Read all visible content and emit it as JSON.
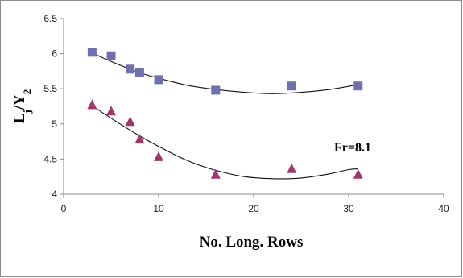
{
  "chart_data": {
    "type": "scatter",
    "title": "",
    "xlabel": "No. Long. Rows",
    "ylabel": {
      "main": "L",
      "sub1": "j",
      "slash": "/Y",
      "sub2": "2"
    },
    "xlim": [
      0,
      40
    ],
    "ylim": [
      4,
      6.5
    ],
    "x_ticks": [
      0,
      10,
      20,
      30,
      40
    ],
    "x_tick_labels": [
      "0",
      "10",
      "20",
      "30",
      "40"
    ],
    "y_ticks": [
      4,
      4.5,
      5,
      5.5,
      6,
      6.5
    ],
    "y_tick_labels": [
      "4",
      "4.5",
      "5",
      "5.5",
      "6",
      "6.5"
    ],
    "grid": false,
    "legend": "none",
    "annotation": "Fr=8.1",
    "series": [
      {
        "marker": "square",
        "color": "#7070B0",
        "points": [
          [
            3,
            6.02
          ],
          [
            5,
            5.97
          ],
          [
            7,
            5.78
          ],
          [
            8,
            5.73
          ],
          [
            10,
            5.63
          ],
          [
            16,
            5.48
          ],
          [
            24,
            5.54
          ],
          [
            31,
            5.54
          ]
        ],
        "trend": [
          [
            3,
            6.01
          ],
          [
            5,
            5.89
          ],
          [
            8,
            5.73
          ],
          [
            10,
            5.65
          ],
          [
            13,
            5.55
          ],
          [
            16,
            5.49
          ],
          [
            19,
            5.45
          ],
          [
            22,
            5.43
          ],
          [
            25,
            5.45
          ],
          [
            28,
            5.49
          ],
          [
            31,
            5.56
          ]
        ]
      },
      {
        "marker": "triangle",
        "color": "#A0386A",
        "points": [
          [
            3,
            5.28
          ],
          [
            5,
            5.19
          ],
          [
            7,
            5.04
          ],
          [
            8,
            4.79
          ],
          [
            10,
            4.54
          ],
          [
            16,
            4.29
          ],
          [
            24,
            4.37
          ],
          [
            31,
            4.29
          ]
        ],
        "trend": [
          [
            3,
            5.26
          ],
          [
            5,
            5.08
          ],
          [
            8,
            4.83
          ],
          [
            10,
            4.68
          ],
          [
            13,
            4.48
          ],
          [
            16,
            4.34
          ],
          [
            19,
            4.25
          ],
          [
            22,
            4.22
          ],
          [
            25,
            4.23
          ],
          [
            28,
            4.29
          ],
          [
            30,
            4.35
          ],
          [
            31,
            4.36
          ]
        ]
      }
    ]
  }
}
